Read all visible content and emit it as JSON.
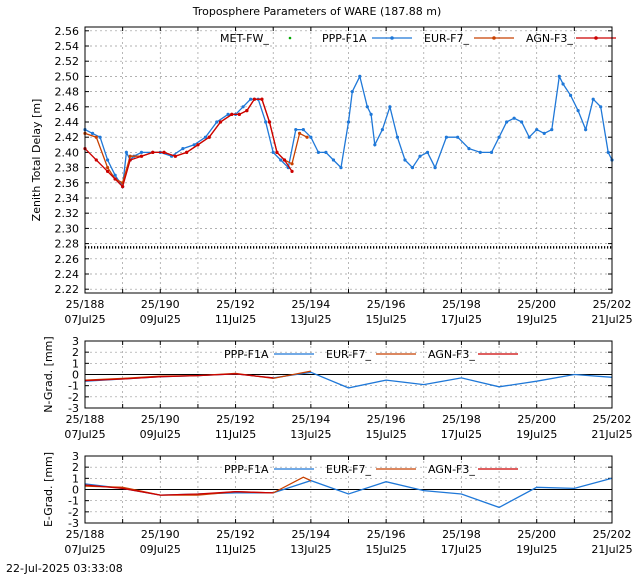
{
  "timestamp": "22-Jul-2025 03:33:08",
  "colors": {
    "met": "#00aa00",
    "ppp": "#1f78d8",
    "eur": "#c84000",
    "agn": "#cc0000",
    "zero": "#000000"
  },
  "chart_data": [
    {
      "type": "line",
      "title": "Troposphere Parameters of WARE (187.88 m)",
      "ylabel": "Zenith Total Delay [m]",
      "xlim": [
        188,
        202
      ],
      "ylim": [
        2.215,
        2.565
      ],
      "yticks": [
        "2.22",
        "2.24",
        "2.26",
        "2.28",
        "2.30",
        "2.32",
        "2.34",
        "2.36",
        "2.38",
        "2.40",
        "2.42",
        "2.44",
        "2.46",
        "2.48",
        "2.50",
        "2.52",
        "2.54",
        "2.56"
      ],
      "xticks": [
        {
          "top": "25/188",
          "bottom": "07Jul25"
        },
        {
          "top": "25/190",
          "bottom": "09Jul25"
        },
        {
          "top": "25/192",
          "bottom": "11Jul25"
        },
        {
          "top": "25/194",
          "bottom": "13Jul25"
        },
        {
          "top": "25/196",
          "bottom": "15Jul25"
        },
        {
          "top": "25/198",
          "bottom": "17Jul25"
        },
        {
          "top": "25/200",
          "bottom": "19Jul25"
        },
        {
          "top": "25/202",
          "bottom": "21Jul25"
        }
      ],
      "legend": [
        "MET-FW_",
        "PPP-F1A",
        "EUR-F7_",
        "AGN-F3_"
      ],
      "series": [
        {
          "name": "MET-FW_",
          "x": [
            188,
            202
          ],
          "values": [
            2.275,
            2.275
          ]
        },
        {
          "name": "PPP-F1A",
          "x": [
            188.0,
            188.2,
            188.4,
            188.6,
            188.8,
            189.0,
            189.1,
            189.2,
            189.3,
            189.5,
            189.8,
            190.0,
            190.3,
            190.6,
            190.9,
            191.2,
            191.5,
            191.8,
            192.0,
            192.2,
            192.4,
            192.6,
            192.8,
            193.0,
            193.2,
            193.4,
            193.6,
            193.8,
            194.0,
            194.2,
            194.4,
            194.6,
            194.8,
            195.0,
            195.1,
            195.3,
            195.5,
            195.6,
            195.7,
            195.9,
            196.1,
            196.3,
            196.5,
            196.7,
            196.9,
            197.1,
            197.3,
            197.6,
            197.9,
            198.2,
            198.5,
            198.8,
            199.0,
            199.2,
            199.4,
            199.6,
            199.8,
            200.0,
            200.2,
            200.4,
            200.6,
            200.7,
            200.9,
            201.1,
            201.3,
            201.5,
            201.7,
            201.9,
            202.0
          ],
          "values": [
            2.43,
            2.425,
            2.42,
            2.39,
            2.37,
            2.355,
            2.4,
            2.39,
            2.395,
            2.4,
            2.4,
            2.4,
            2.395,
            2.405,
            2.41,
            2.42,
            2.44,
            2.45,
            2.45,
            2.46,
            2.47,
            2.47,
            2.44,
            2.4,
            2.39,
            2.38,
            2.43,
            2.43,
            2.42,
            2.4,
            2.4,
            2.39,
            2.38,
            2.44,
            2.48,
            2.5,
            2.46,
            2.45,
            2.41,
            2.43,
            2.46,
            2.42,
            2.39,
            2.38,
            2.395,
            2.4,
            2.38,
            2.42,
            2.42,
            2.405,
            2.4,
            2.4,
            2.42,
            2.44,
            2.445,
            2.44,
            2.42,
            2.43,
            2.425,
            2.43,
            2.5,
            2.49,
            2.475,
            2.455,
            2.43,
            2.47,
            2.46,
            2.4,
            2.39
          ]
        },
        {
          "name": "EUR-F7_",
          "x": [
            188.0,
            188.3,
            188.6,
            188.8,
            189.0,
            189.2,
            189.5,
            189.8,
            190.1,
            190.4,
            190.7,
            191.0,
            191.3,
            191.6,
            191.9,
            192.1,
            192.3,
            192.5,
            192.7,
            192.9,
            193.1,
            193.3,
            193.5,
            193.7,
            193.9
          ],
          "values": [
            2.425,
            2.42,
            2.38,
            2.365,
            2.36,
            2.395,
            2.395,
            2.4,
            2.4,
            2.395,
            2.4,
            2.41,
            2.42,
            2.44,
            2.45,
            2.45,
            2.455,
            2.47,
            2.47,
            2.44,
            2.4,
            2.39,
            2.385,
            2.425,
            2.42
          ]
        },
        {
          "name": "AGN-F3_",
          "x": [
            188.0,
            188.3,
            188.6,
            188.8,
            189.0,
            189.2,
            189.5,
            189.8,
            190.1,
            190.4,
            190.7,
            191.0,
            191.3,
            191.6,
            191.9,
            192.1,
            192.3,
            192.5,
            192.7,
            192.9,
            193.1,
            193.3,
            193.5
          ],
          "values": [
            2.405,
            2.39,
            2.375,
            2.365,
            2.355,
            2.39,
            2.395,
            2.4,
            2.4,
            2.395,
            2.4,
            2.41,
            2.42,
            2.44,
            2.45,
            2.45,
            2.455,
            2.47,
            2.47,
            2.44,
            2.4,
            2.39,
            2.375
          ]
        }
      ]
    },
    {
      "type": "line",
      "ylabel": "N-Grad. [mm]",
      "xlim": [
        188,
        202
      ],
      "ylim": [
        -3,
        3
      ],
      "yticks": [
        "-3",
        "-2",
        "-1",
        "0",
        "1",
        "2",
        "3"
      ],
      "xticks": [
        {
          "top": "25/188",
          "bottom": "07Jul25"
        },
        {
          "top": "25/190",
          "bottom": "09Jul25"
        },
        {
          "top": "25/192",
          "bottom": "11Jul25"
        },
        {
          "top": "25/194",
          "bottom": "13Jul25"
        },
        {
          "top": "25/196",
          "bottom": "15Jul25"
        },
        {
          "top": "25/198",
          "bottom": "17Jul25"
        },
        {
          "top": "25/200",
          "bottom": "19Jul25"
        },
        {
          "top": "25/202",
          "bottom": "21Jul25"
        }
      ],
      "legend": [
        "PPP-F1A",
        "EUR-F7_",
        "AGN-F3_"
      ],
      "series": [
        {
          "name": "PPP-F1A",
          "x": [
            188,
            189,
            190,
            191,
            192,
            193,
            194,
            195,
            196,
            197,
            198,
            199,
            200,
            201,
            202
          ],
          "values": [
            -0.6,
            -0.4,
            -0.2,
            -0.1,
            0.05,
            -0.3,
            0.2,
            -1.2,
            -0.5,
            -0.9,
            -0.3,
            -1.1,
            -0.6,
            0.0,
            -0.25
          ]
        },
        {
          "name": "EUR-F7_",
          "x": [
            188,
            189,
            190,
            191,
            192,
            193,
            194
          ],
          "values": [
            -0.5,
            -0.35,
            -0.15,
            -0.1,
            0.1,
            -0.35,
            0.3
          ]
        },
        {
          "name": "AGN-F3_",
          "x": [
            188,
            189,
            190,
            191,
            192,
            193
          ],
          "values": [
            -0.55,
            -0.4,
            -0.2,
            -0.1,
            0.05,
            -0.3
          ]
        }
      ]
    },
    {
      "type": "line",
      "ylabel": "E-Grad. [mm]",
      "xlim": [
        188,
        202
      ],
      "ylim": [
        -3,
        3
      ],
      "yticks": [
        "-3",
        "-2",
        "-1",
        "0",
        "1",
        "2",
        "3"
      ],
      "xticks": [
        {
          "top": "25/188",
          "bottom": "07Jul25"
        },
        {
          "top": "25/190",
          "bottom": "09Jul25"
        },
        {
          "top": "25/192",
          "bottom": "11Jul25"
        },
        {
          "top": "25/194",
          "bottom": "13Jul25"
        },
        {
          "top": "25/196",
          "bottom": "15Jul25"
        },
        {
          "top": "25/198",
          "bottom": "17Jul25"
        },
        {
          "top": "25/200",
          "bottom": "19Jul25"
        },
        {
          "top": "25/202",
          "bottom": "21Jul25"
        }
      ],
      "legend": [
        "PPP-F1A",
        "EUR-F7_",
        "AGN-F3_"
      ],
      "series": [
        {
          "name": "PPP-F1A",
          "x": [
            188,
            189,
            190,
            191,
            192,
            193,
            194,
            195,
            196,
            197,
            198,
            199,
            200,
            201,
            202
          ],
          "values": [
            0.5,
            0.1,
            -0.5,
            -0.4,
            -0.3,
            -0.3,
            0.8,
            -0.4,
            0.7,
            -0.1,
            -0.4,
            -1.6,
            0.2,
            0.1,
            1.0
          ]
        },
        {
          "name": "EUR-F7_",
          "x": [
            188,
            189,
            190,
            191,
            192,
            193,
            193.8,
            194
          ],
          "values": [
            0.3,
            0.2,
            -0.5,
            -0.5,
            -0.2,
            -0.3,
            1.1,
            0.8
          ]
        },
        {
          "name": "AGN-F3_",
          "x": [
            188,
            189,
            190,
            191,
            192,
            193
          ],
          "values": [
            0.4,
            0.1,
            -0.5,
            -0.4,
            -0.2,
            -0.3
          ]
        }
      ]
    }
  ]
}
